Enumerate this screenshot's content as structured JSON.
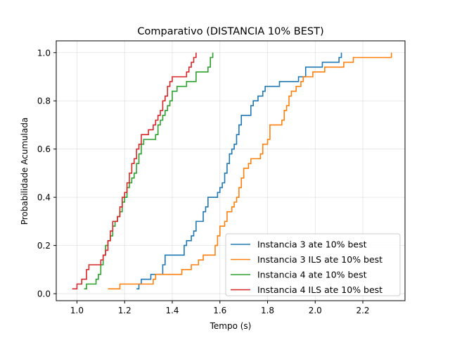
{
  "chart_data": {
    "type": "line",
    "step": true,
    "title": "Comparativo (DISTANCIA 10% BEST)",
    "xlabel": "Tempo (s)",
    "ylabel": "Probabilidade Acumulada",
    "xlim": [
      0.913,
      2.377
    ],
    "ylim": [
      -0.029,
      1.049
    ],
    "grid": true,
    "legend_position": "lower-right",
    "x_ticks": [
      "1.0",
      "1.2",
      "1.4",
      "1.6",
      "1.8",
      "2.0",
      "2.2"
    ],
    "x_tick_values": [
      1.0,
      1.2,
      1.4,
      1.6,
      1.8,
      2.0,
      2.2
    ],
    "y_ticks": [
      "0.0",
      "0.2",
      "0.4",
      "0.6",
      "0.8",
      "1.0"
    ],
    "y_tick_values": [
      0.0,
      0.2,
      0.4,
      0.6,
      0.8,
      1.0
    ],
    "series": [
      {
        "name": "Instancia 3 ate 10% best",
        "color": "#1f77b4",
        "points": [
          [
            1.25,
            0.02
          ],
          [
            1.26,
            0.04
          ],
          [
            1.27,
            0.06
          ],
          [
            1.31,
            0.08
          ],
          [
            1.36,
            0.12
          ],
          [
            1.37,
            0.16
          ],
          [
            1.45,
            0.2
          ],
          [
            1.46,
            0.22
          ],
          [
            1.48,
            0.24
          ],
          [
            1.49,
            0.26
          ],
          [
            1.5,
            0.3
          ],
          [
            1.53,
            0.34
          ],
          [
            1.54,
            0.36
          ],
          [
            1.55,
            0.4
          ],
          [
            1.59,
            0.42
          ],
          [
            1.6,
            0.44
          ],
          [
            1.61,
            0.46
          ],
          [
            1.62,
            0.5
          ],
          [
            1.63,
            0.54
          ],
          [
            1.64,
            0.58
          ],
          [
            1.65,
            0.6
          ],
          [
            1.66,
            0.62
          ],
          [
            1.67,
            0.66
          ],
          [
            1.68,
            0.7
          ],
          [
            1.69,
            0.74
          ],
          [
            1.73,
            0.78
          ],
          [
            1.74,
            0.8
          ],
          [
            1.76,
            0.82
          ],
          [
            1.78,
            0.84
          ],
          [
            1.79,
            0.86
          ],
          [
            1.85,
            0.88
          ],
          [
            1.93,
            0.9
          ],
          [
            1.96,
            0.94
          ],
          [
            2.03,
            0.96
          ],
          [
            2.1,
            0.98
          ],
          [
            2.11,
            1.0
          ]
        ]
      },
      {
        "name": "Instancia 3 ILS ate 10% best",
        "color": "#ff7f0e",
        "points": [
          [
            1.13,
            0.02
          ],
          [
            1.18,
            0.04
          ],
          [
            1.32,
            0.06
          ],
          [
            1.33,
            0.08
          ],
          [
            1.44,
            0.1
          ],
          [
            1.48,
            0.12
          ],
          [
            1.51,
            0.14
          ],
          [
            1.53,
            0.16
          ],
          [
            1.58,
            0.2
          ],
          [
            1.59,
            0.24
          ],
          [
            1.6,
            0.28
          ],
          [
            1.62,
            0.3
          ],
          [
            1.63,
            0.34
          ],
          [
            1.65,
            0.36
          ],
          [
            1.66,
            0.38
          ],
          [
            1.67,
            0.4
          ],
          [
            1.68,
            0.44
          ],
          [
            1.69,
            0.48
          ],
          [
            1.7,
            0.52
          ],
          [
            1.72,
            0.54
          ],
          [
            1.73,
            0.56
          ],
          [
            1.77,
            0.58
          ],
          [
            1.78,
            0.62
          ],
          [
            1.8,
            0.64
          ],
          [
            1.81,
            0.7
          ],
          [
            1.86,
            0.72
          ],
          [
            1.87,
            0.76
          ],
          [
            1.88,
            0.78
          ],
          [
            1.89,
            0.82
          ],
          [
            1.9,
            0.84
          ],
          [
            1.92,
            0.86
          ],
          [
            1.94,
            0.88
          ],
          [
            1.95,
            0.9
          ],
          [
            1.99,
            0.92
          ],
          [
            2.04,
            0.94
          ],
          [
            2.12,
            0.96
          ],
          [
            2.16,
            0.98
          ],
          [
            2.32,
            1.0
          ]
        ]
      },
      {
        "name": "Instancia 4 ate 10% best",
        "color": "#2ca02c",
        "points": [
          [
            1.03,
            0.02
          ],
          [
            1.04,
            0.04
          ],
          [
            1.08,
            0.06
          ],
          [
            1.09,
            0.08
          ],
          [
            1.1,
            0.12
          ],
          [
            1.11,
            0.16
          ],
          [
            1.12,
            0.2
          ],
          [
            1.13,
            0.22
          ],
          [
            1.14,
            0.24
          ],
          [
            1.15,
            0.28
          ],
          [
            1.16,
            0.3
          ],
          [
            1.17,
            0.32
          ],
          [
            1.18,
            0.34
          ],
          [
            1.19,
            0.38
          ],
          [
            1.2,
            0.4
          ],
          [
            1.21,
            0.44
          ],
          [
            1.22,
            0.46
          ],
          [
            1.23,
            0.48
          ],
          [
            1.24,
            0.5
          ],
          [
            1.25,
            0.54
          ],
          [
            1.26,
            0.58
          ],
          [
            1.27,
            0.62
          ],
          [
            1.28,
            0.64
          ],
          [
            1.33,
            0.66
          ],
          [
            1.34,
            0.7
          ],
          [
            1.35,
            0.72
          ],
          [
            1.36,
            0.74
          ],
          [
            1.37,
            0.76
          ],
          [
            1.38,
            0.78
          ],
          [
            1.39,
            0.8
          ],
          [
            1.4,
            0.84
          ],
          [
            1.42,
            0.86
          ],
          [
            1.46,
            0.88
          ],
          [
            1.5,
            0.92
          ],
          [
            1.55,
            0.94
          ],
          [
            1.56,
            0.98
          ],
          [
            1.57,
            1.0
          ]
        ]
      },
      {
        "name": "Instancia 4 ILS ate 10% best",
        "color": "#d62728",
        "points": [
          [
            0.98,
            0.02
          ],
          [
            1.0,
            0.04
          ],
          [
            1.02,
            0.06
          ],
          [
            1.04,
            0.1
          ],
          [
            1.05,
            0.12
          ],
          [
            1.1,
            0.14
          ],
          [
            1.11,
            0.16
          ],
          [
            1.12,
            0.18
          ],
          [
            1.13,
            0.22
          ],
          [
            1.14,
            0.26
          ],
          [
            1.15,
            0.3
          ],
          [
            1.17,
            0.32
          ],
          [
            1.18,
            0.36
          ],
          [
            1.19,
            0.4
          ],
          [
            1.2,
            0.42
          ],
          [
            1.21,
            0.46
          ],
          [
            1.22,
            0.5
          ],
          [
            1.23,
            0.54
          ],
          [
            1.24,
            0.56
          ],
          [
            1.25,
            0.6
          ],
          [
            1.26,
            0.62
          ],
          [
            1.27,
            0.66
          ],
          [
            1.3,
            0.68
          ],
          [
            1.32,
            0.7
          ],
          [
            1.33,
            0.72
          ],
          [
            1.34,
            0.74
          ],
          [
            1.35,
            0.76
          ],
          [
            1.36,
            0.8
          ],
          [
            1.37,
            0.82
          ],
          [
            1.38,
            0.86
          ],
          [
            1.39,
            0.88
          ],
          [
            1.4,
            0.9
          ],
          [
            1.46,
            0.92
          ],
          [
            1.47,
            0.94
          ],
          [
            1.48,
            0.96
          ],
          [
            1.49,
            0.98
          ],
          [
            1.5,
            1.0
          ]
        ]
      }
    ]
  }
}
